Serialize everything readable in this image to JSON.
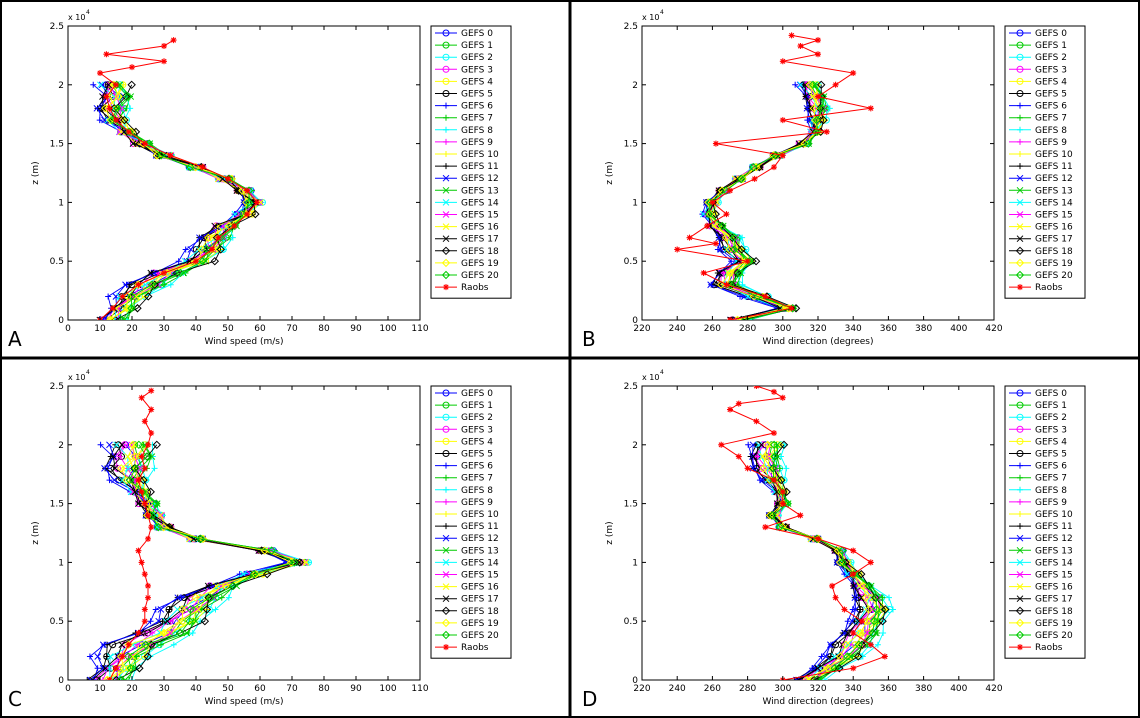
{
  "figure": {
    "panel_labels": [
      "A",
      "B",
      "C",
      "D"
    ]
  },
  "legend_entries": [
    "GEFS 0",
    "GEFS 1",
    "GEFS 2",
    "GEFS 3",
    "GEFS 4",
    "GEFS 5",
    "GEFS 6",
    "GEFS 7",
    "GEFS 8",
    "GEFS 9",
    "GEFS 10",
    "GEFS 11",
    "GEFS 12",
    "GEFS 13",
    "GEFS 14",
    "GEFS 15",
    "GEFS 16",
    "GEFS 17",
    "GEFS 18",
    "GEFS 19",
    "GEFS 20",
    "Raobs"
  ],
  "series_colors": [
    "#0000ff",
    "#00cc00",
    "#00ffff",
    "#ff00ff",
    "#ffff00",
    "#000000",
    "#0000ff",
    "#00cc00",
    "#00ffff",
    "#ff00ff",
    "#ffff00",
    "#000000",
    "#0000ff",
    "#00cc00",
    "#00ffff",
    "#ff00ff",
    "#ffff00",
    "#000000",
    "#000000",
    "#ffff00",
    "#00cc00",
    "#ff0000"
  ],
  "series_markers": [
    "circle",
    "circle",
    "circle",
    "circle",
    "circle",
    "circle",
    "plus",
    "plus",
    "plus",
    "plus",
    "plus",
    "plus",
    "x",
    "x",
    "x",
    "x",
    "x",
    "x",
    "diamond",
    "diamond",
    "diamond",
    "star"
  ],
  "y_exponent": "x 10",
  "y_exponent_power": "4",
  "chart_data": [
    {
      "type": "line",
      "panel": "A",
      "xlabel": "Wind speed (m/s)",
      "ylabel": "z (m)",
      "xlim": [
        0,
        110
      ],
      "ylim": [
        0,
        25000
      ],
      "x_ticks": [
        0,
        10,
        20,
        30,
        40,
        50,
        60,
        70,
        80,
        90,
        100,
        110
      ],
      "y_ticks": [
        0,
        5000,
        10000,
        15000,
        20000,
        25000
      ],
      "y_tick_labels": [
        "0",
        "0.5",
        "1",
        "1.5",
        "2",
        "2.5"
      ],
      "heights": [
        0,
        1000,
        2000,
        3000,
        4000,
        5000,
        6000,
        7000,
        8000,
        9000,
        10000,
        11000,
        12000,
        13000,
        14000,
        15000,
        16000,
        17000,
        18000,
        19000,
        20000
      ],
      "ensemble_mean": [
        14,
        17,
        20,
        25,
        31,
        40,
        44,
        46,
        49,
        55,
        58,
        55,
        49,
        40,
        30,
        23,
        18,
        15,
        14,
        15,
        14
      ],
      "ensemble_offsets": [
        0,
        2,
        3,
        -2,
        1,
        -3,
        -6,
        4,
        5,
        -1,
        2,
        -4,
        -5,
        3,
        -2,
        1,
        0,
        -3,
        4,
        -1,
        2
      ],
      "raobs": {
        "name": "Raobs",
        "x": [
          10,
          14,
          17,
          22,
          30,
          40,
          45,
          47,
          52,
          56,
          59,
          56,
          50,
          42,
          32,
          24,
          19,
          15,
          13,
          12,
          15,
          10,
          20,
          30,
          12,
          30,
          33
        ],
        "z": [
          0,
          1000,
          2000,
          3000,
          4000,
          5000,
          6000,
          7000,
          8000,
          9000,
          10000,
          11000,
          12000,
          13000,
          14000,
          15000,
          16000,
          17000,
          18000,
          19000,
          20000,
          21000,
          21500,
          22000,
          22600,
          23300,
          23800
        ]
      }
    },
    {
      "type": "line",
      "panel": "B",
      "xlabel": "Wind direction (degrees)",
      "ylabel": "z (m)",
      "xlim": [
        220,
        420
      ],
      "ylim": [
        0,
        25000
      ],
      "x_ticks": [
        220,
        240,
        260,
        280,
        300,
        320,
        340,
        360,
        380,
        400,
        420
      ],
      "y_ticks": [
        0,
        5000,
        10000,
        15000,
        20000,
        25000
      ],
      "y_tick_labels": [
        "0",
        "0.5",
        "1",
        "1.5",
        "2",
        "2.5"
      ],
      "heights": [
        0,
        1000,
        2000,
        3000,
        4000,
        5000,
        6000,
        7000,
        8000,
        9000,
        10000,
        11000,
        12000,
        13000,
        14000,
        15000,
        16000,
        17000,
        18000,
        19000,
        20000
      ],
      "ensemble_mean": [
        275,
        302,
        285,
        268,
        270,
        278,
        272,
        270,
        262,
        258,
        260,
        266,
        275,
        285,
        297,
        312,
        318,
        320,
        320,
        318,
        315
      ],
      "ensemble_offsets": [
        0,
        3,
        6,
        -3,
        2,
        -5,
        -8,
        5,
        7,
        -2,
        4,
        -6,
        -7,
        4,
        -3,
        2,
        1,
        -4,
        5,
        -1,
        3
      ],
      "raobs": {
        "name": "Raobs",
        "x": [
          270,
          305,
          290,
          268,
          255,
          280,
          240,
          262,
          247,
          257,
          268,
          260,
          270,
          284,
          295,
          300,
          262,
          325,
          300,
          350,
          320,
          330,
          340,
          300,
          320,
          310,
          320,
          305
        ],
        "z": [
          0,
          1000,
          2000,
          3000,
          4000,
          5000,
          6000,
          6500,
          7000,
          8000,
          9000,
          10000,
          11000,
          12000,
          13000,
          14000,
          15000,
          16000,
          17000,
          18000,
          19000,
          20000,
          21000,
          22000,
          22600,
          23300,
          23800,
          24200
        ]
      }
    },
    {
      "type": "line",
      "panel": "C",
      "xlabel": "Wind speed (m/s)",
      "ylabel": "z (m)",
      "xlim": [
        0,
        110
      ],
      "ylim": [
        0,
        25000
      ],
      "x_ticks": [
        0,
        10,
        20,
        30,
        40,
        50,
        60,
        70,
        80,
        90,
        100,
        110
      ],
      "y_ticks": [
        0,
        5000,
        10000,
        15000,
        20000,
        25000
      ],
      "y_tick_labels": [
        "0",
        "0.5",
        "1",
        "1.5",
        "2",
        "2.5"
      ],
      "heights": [
        0,
        1000,
        2000,
        3000,
        4000,
        5000,
        6000,
        7000,
        8000,
        9000,
        10000,
        11000,
        12000,
        13000,
        14000,
        15000,
        16000,
        17000,
        18000,
        19000,
        20000
      ],
      "ensemble_mean": [
        13,
        16,
        18,
        22,
        30,
        35,
        38,
        42,
        48,
        58,
        72,
        62,
        40,
        30,
        27,
        25,
        22,
        20,
        19,
        20,
        20
      ],
      "ensemble_offsets": [
        0,
        3,
        5,
        -4,
        2,
        -6,
        -10,
        6,
        9,
        -2,
        4,
        -8,
        -9,
        5,
        -3,
        2,
        1,
        -5,
        6,
        -1,
        3
      ],
      "raobs": {
        "name": "Raobs",
        "x": [
          13,
          15,
          17,
          19,
          22,
          24,
          24,
          25,
          25,
          24,
          23,
          22,
          25,
          26,
          25,
          24,
          23,
          22,
          24,
          23,
          25,
          26,
          24,
          26,
          23,
          26
        ],
        "z": [
          0,
          1000,
          2000,
          3000,
          4000,
          5000,
          6000,
          7000,
          8000,
          9000,
          10000,
          11000,
          12000,
          13000,
          14000,
          15000,
          16000,
          17000,
          18000,
          19000,
          20000,
          21000,
          22000,
          23000,
          24000,
          24600
        ]
      }
    },
    {
      "type": "line",
      "panel": "D",
      "xlabel": "Wind direction (degrees)",
      "ylabel": "z (m)",
      "xlim": [
        220,
        420
      ],
      "ylim": [
        0,
        25000
      ],
      "x_ticks": [
        220,
        240,
        260,
        280,
        300,
        320,
        340,
        360,
        380,
        400,
        420
      ],
      "y_ticks": [
        0,
        5000,
        10000,
        15000,
        20000,
        25000
      ],
      "y_tick_labels": [
        "0",
        "0.5",
        "1",
        "1.5",
        "2",
        "2.5"
      ],
      "heights": [
        0,
        1000,
        2000,
        3000,
        4000,
        5000,
        6000,
        7000,
        8000,
        9000,
        10000,
        11000,
        12000,
        13000,
        14000,
        15000,
        16000,
        17000,
        18000,
        19000,
        20000
      ],
      "ensemble_mean": [
        315,
        325,
        335,
        340,
        345,
        348,
        352,
        350,
        345,
        340,
        335,
        332,
        318,
        300,
        295,
        300,
        298,
        295,
        292,
        290,
        292
      ],
      "ensemble_offsets": [
        0,
        4,
        8,
        -5,
        3,
        -8,
        -12,
        7,
        12,
        -3,
        6,
        -10,
        -11,
        6,
        -4,
        3,
        1,
        -6,
        7,
        -2,
        4
      ],
      "raobs": {
        "name": "Raobs",
        "x": [
          300,
          340,
          358,
          350,
          340,
          345,
          335,
          330,
          328,
          340,
          350,
          340,
          320,
          290,
          310,
          300,
          300,
          295,
          280,
          275,
          265,
          295,
          285,
          270,
          275,
          300,
          295,
          285
        ],
        "z": [
          0,
          1000,
          2000,
          3000,
          4000,
          5000,
          6000,
          7000,
          8000,
          9000,
          10000,
          11000,
          12000,
          13000,
          14000,
          15000,
          16000,
          17000,
          18000,
          19000,
          20000,
          21000,
          22000,
          23000,
          23500,
          24000,
          24500,
          25000
        ]
      }
    }
  ]
}
